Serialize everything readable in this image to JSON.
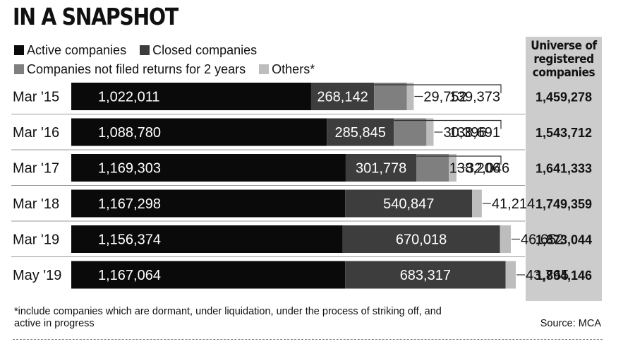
{
  "title": "IN A SNAPSHOT",
  "source": "Source: MCA",
  "footnote": "*include companies which are dormant, under liquidation, under the process of striking off, and active in progress",
  "chart_data": {
    "type": "bar",
    "stacked": true,
    "orientation": "horizontal",
    "title": "IN A SNAPSHOT",
    "categories": [
      "Mar '15",
      "Mar '16",
      "Mar '17",
      "Mar '18",
      "Mar '19",
      "May '19"
    ],
    "series": [
      {
        "name": "Active companies",
        "color": "#0a0a0a",
        "values": [
          1022011,
          1088780,
          1169303,
          1167298,
          1156374,
          1167064
        ],
        "labels": [
          "1,022,011",
          "1,088,780",
          "1,169,303",
          "1,167,298",
          "1,156,374",
          "1,167,064"
        ]
      },
      {
        "name": "Closed companies",
        "color": "#3d3d3d",
        "values": [
          268142,
          285845,
          301778,
          540847,
          670018,
          683317
        ],
        "labels": [
          "268,142",
          "285,845",
          "301,778",
          "540,847",
          "670,018",
          "683,317"
        ]
      },
      {
        "name": "Companies not filed returns for 2 years",
        "color": "#7f7f7f",
        "values": [
          139373,
          138691,
          138206,
          null,
          null,
          null
        ],
        "labels": [
          "139,373",
          "138,691",
          "138,206",
          "",
          "",
          ""
        ]
      },
      {
        "name": "Others*",
        "color": "#bdbdbd",
        "values": [
          29752,
          30396,
          32046,
          41214,
          46652,
          43765
        ],
        "labels": [
          "29,752",
          "30,396",
          "32,046",
          "41,214",
          "46,652",
          "43,765"
        ]
      }
    ],
    "universe_header": "Universe of registered companies",
    "universe": [
      1459278,
      1543712,
      1641333,
      1749359,
      1873044,
      1894146
    ],
    "universe_labels": [
      "1,459,278",
      "1,543,712",
      "1,641,333",
      "1,749,359",
      "1,873,044",
      "1,894,146"
    ]
  }
}
